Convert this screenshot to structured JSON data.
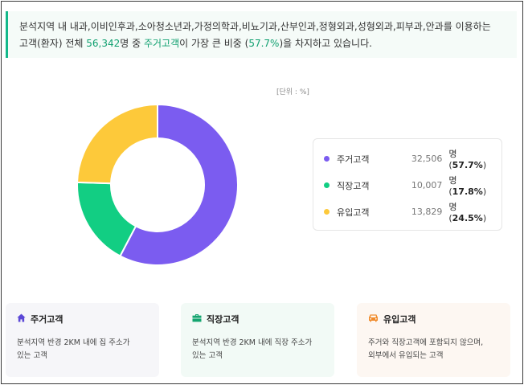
{
  "summary": {
    "line1": "분석지역 내 내과,이비인후과,소아청소년과,가정의학과,비뇨기과,산부인과,정형외과,성형외과,피부과,안과를 이용하는",
    "line2_pre": "고객(환자) 전체 ",
    "line2_total": "56,342",
    "line2_mid1": "명 중 ",
    "line2_top": "주거고객",
    "line2_mid2": "이 가장 큰 비중 (",
    "line2_pct": "57.7%",
    "line2_post": ")을 차지하고 있습니다."
  },
  "chart_data": {
    "type": "pie",
    "unit_label": "[단위 : %]",
    "categories": [
      "주거고객",
      "직장고객",
      "유입고객"
    ],
    "counts": [
      "32,506",
      "10,007",
      "13,829"
    ],
    "count_unit": "명",
    "percent_labels": [
      "57.7%",
      "17.8%",
      "24.5%"
    ],
    "values": [
      57.7,
      17.8,
      24.5
    ],
    "colors": [
      "#7b5cf0",
      "#12ce83",
      "#fdc93a"
    ],
    "legend_placement": "right"
  },
  "cards": [
    {
      "title": "주거고객",
      "icon": "home-icon",
      "desc1": "분석지역 반경 2KM 내에 집 주소가",
      "desc2": "있는 고객",
      "bg": "#f6f6f9",
      "icon_color": "#5b48d6"
    },
    {
      "title": "직장고객",
      "icon": "briefcase-icon",
      "desc1": "분석지역 반경 2KM 내에 직장 주소가",
      "desc2": "있는 고객",
      "bg": "#f2faf6",
      "icon_color": "#14a56f"
    },
    {
      "title": "유입고객",
      "icon": "car-icon",
      "desc1": "주거와 직장고객에 포함되지 않으며,",
      "desc2": "외부에서 유입되는 고객",
      "bg": "#fdf7f2",
      "icon_color": "#f08a2a"
    }
  ]
}
